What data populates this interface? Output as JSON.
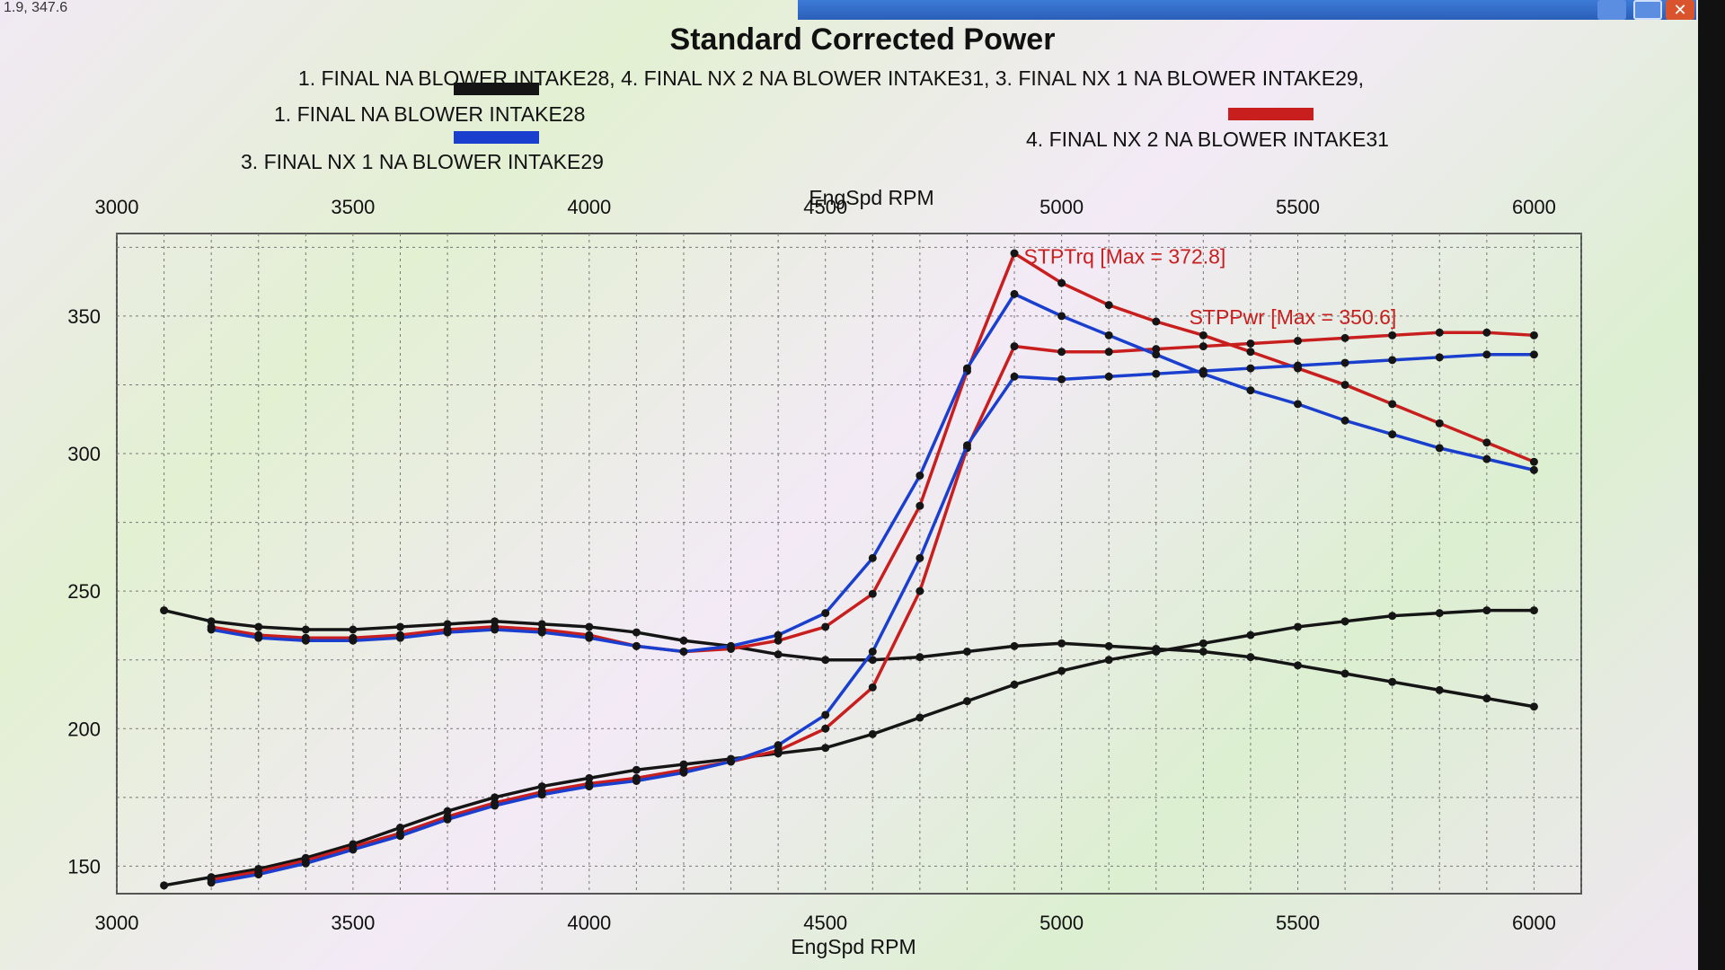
{
  "coord_readout": "1.9, 347.6",
  "window_buttons": {
    "close": "✕"
  },
  "chart_data": {
    "type": "line",
    "title": "Standard Corrected Power",
    "subtitle": "1. FINAL NA BLOWER INTAKE28, 4. FINAL NX 2 NA BLOWER INTAKE31, 3. FINAL NX 1 NA BLOWER INTAKE29,",
    "xlabel_top": "EngSpd RPM",
    "xlabel_bottom": "EngSpd RPM",
    "xlim": [
      3000,
      6100
    ],
    "ylim": [
      140,
      380
    ],
    "x_ticks": [
      3000,
      3500,
      4000,
      4500,
      5000,
      5500,
      6000
    ],
    "y_ticks": [
      150,
      200,
      250,
      300,
      350
    ],
    "grid": true,
    "colors": {
      "black": "#151515",
      "red": "#c81e1e",
      "blue": "#1a3fcf"
    },
    "legend": [
      {
        "label": "1. FINAL NA BLOWER INTAKE28",
        "color": "#151515"
      },
      {
        "label": "3. FINAL NX 1 NA BLOWER INTAKE29",
        "color": "#1a3fcf"
      },
      {
        "label": "4. FINAL NX 2 NA BLOWER INTAKE31",
        "color": "#c81e1e"
      }
    ],
    "annotations": [
      {
        "text": "STPTrq [Max = 372.8]",
        "x": 4920,
        "y": 369,
        "color": "#c81e1e"
      },
      {
        "text": "STPPwr [Max = 350.6]",
        "x": 5270,
        "y": 347,
        "color": "#c81e1e"
      }
    ],
    "series": [
      {
        "name": "1. FINAL NA BLOWER INTAKE28",
        "metric": "torque",
        "color": "#151515",
        "x": [
          3100,
          3200,
          3300,
          3400,
          3500,
          3600,
          3700,
          3800,
          3900,
          4000,
          4100,
          4200,
          4300,
          4400,
          4500,
          4600,
          4700,
          4800,
          4900,
          5000,
          5100,
          5200,
          5300,
          5400,
          5500,
          5600,
          5700,
          5800,
          5900,
          6000
        ],
        "y": [
          243,
          239,
          237,
          236,
          236,
          237,
          238,
          239,
          238,
          237,
          235,
          232,
          230,
          227,
          225,
          225,
          226,
          228,
          230,
          231,
          230,
          229,
          228,
          226,
          223,
          220,
          217,
          214,
          211,
          208
        ]
      },
      {
        "name": "1. FINAL NA BLOWER INTAKE28",
        "metric": "power",
        "color": "#151515",
        "x": [
          3100,
          3200,
          3300,
          3400,
          3500,
          3600,
          3700,
          3800,
          3900,
          4000,
          4100,
          4200,
          4300,
          4400,
          4500,
          4600,
          4700,
          4800,
          4900,
          5000,
          5100,
          5200,
          5300,
          5400,
          5500,
          5600,
          5700,
          5800,
          5900,
          6000
        ],
        "y": [
          143,
          146,
          149,
          153,
          158,
          164,
          170,
          175,
          179,
          182,
          185,
          187,
          189,
          191,
          193,
          198,
          204,
          210,
          216,
          221,
          225,
          228,
          231,
          234,
          237,
          239,
          241,
          242,
          243,
          243
        ]
      },
      {
        "name": "4. FINAL NX 2 NA BLOWER INTAKE31",
        "metric": "torque",
        "color": "#c81e1e",
        "x": [
          3200,
          3300,
          3400,
          3500,
          3600,
          3700,
          3800,
          3900,
          4000,
          4100,
          4200,
          4300,
          4400,
          4500,
          4600,
          4700,
          4800,
          4900,
          5000,
          5100,
          5200,
          5300,
          5400,
          5500,
          5600,
          5700,
          5800,
          5900,
          6000
        ],
        "y": [
          237,
          234,
          233,
          233,
          234,
          236,
          237,
          236,
          234,
          230,
          228,
          229,
          232,
          237,
          249,
          281,
          330,
          372.8,
          362,
          354,
          348,
          343,
          337,
          331,
          325,
          318,
          311,
          304,
          297
        ]
      },
      {
        "name": "4. FINAL NX 2 NA BLOWER INTAKE31",
        "metric": "power",
        "color": "#c81e1e",
        "x": [
          3200,
          3300,
          3400,
          3500,
          3600,
          3700,
          3800,
          3900,
          4000,
          4100,
          4200,
          4300,
          4400,
          4500,
          4600,
          4700,
          4800,
          4900,
          5000,
          5100,
          5200,
          5300,
          5400,
          5500,
          5600,
          5700,
          5800,
          5900,
          6000
        ],
        "y": [
          145,
          148,
          152,
          157,
          162,
          168,
          173,
          177,
          180,
          182,
          185,
          188,
          192,
          200,
          215,
          250,
          302,
          339,
          337,
          337,
          338,
          339,
          340,
          341,
          342,
          343,
          344,
          344,
          343
        ]
      },
      {
        "name": "3. FINAL NX 1 NA BLOWER INTAKE29",
        "metric": "torque",
        "color": "#1a3fcf",
        "x": [
          3200,
          3300,
          3400,
          3500,
          3600,
          3700,
          3800,
          3900,
          4000,
          4100,
          4200,
          4300,
          4400,
          4500,
          4600,
          4700,
          4800,
          4900,
          5000,
          5100,
          5200,
          5300,
          5400,
          5500,
          5600,
          5700,
          5800,
          5900,
          6000
        ],
        "y": [
          236,
          233,
          232,
          232,
          233,
          235,
          236,
          235,
          233,
          230,
          228,
          230,
          234,
          242,
          262,
          292,
          331,
          358,
          350,
          343,
          336,
          329,
          323,
          318,
          312,
          307,
          302,
          298,
          294
        ]
      },
      {
        "name": "3. FINAL NX 1 NA BLOWER INTAKE29",
        "metric": "power",
        "color": "#1a3fcf",
        "x": [
          3200,
          3300,
          3400,
          3500,
          3600,
          3700,
          3800,
          3900,
          4000,
          4100,
          4200,
          4300,
          4400,
          4500,
          4600,
          4700,
          4800,
          4900,
          5000,
          5100,
          5200,
          5300,
          5400,
          5500,
          5600,
          5700,
          5800,
          5900,
          6000
        ],
        "y": [
          144,
          147,
          151,
          156,
          161,
          167,
          172,
          176,
          179,
          181,
          184,
          188,
          194,
          205,
          228,
          262,
          303,
          328,
          327,
          328,
          329,
          330,
          331,
          332,
          333,
          334,
          335,
          336,
          336
        ]
      }
    ]
  }
}
